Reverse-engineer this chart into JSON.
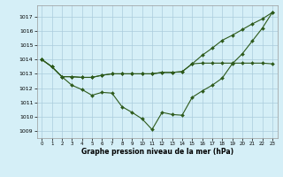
{
  "x": [
    0,
    1,
    2,
    3,
    4,
    5,
    6,
    7,
    8,
    9,
    10,
    11,
    12,
    13,
    14,
    15,
    16,
    17,
    18,
    19,
    20,
    21,
    22,
    23
  ],
  "line_bottom": [
    1014.0,
    1013.5,
    1012.8,
    1012.2,
    1011.9,
    1011.5,
    1011.7,
    1011.65,
    1010.7,
    1010.3,
    1009.85,
    1009.1,
    1010.3,
    1010.15,
    1010.1,
    1011.35,
    1011.8,
    1012.2,
    1012.7,
    1013.7,
    1014.4,
    1015.3,
    1016.2,
    1017.3
  ],
  "line_mid": [
    1014.0,
    1013.5,
    1012.8,
    1012.8,
    1012.75,
    1012.75,
    1012.9,
    1013.0,
    1013.0,
    1013.0,
    1013.0,
    1013.0,
    1013.1,
    1013.1,
    1013.15,
    1013.7,
    1013.75,
    1013.75,
    1013.75,
    1013.75,
    1013.75,
    1013.75,
    1013.75,
    1013.7
  ],
  "line_top": [
    1014.0,
    1013.5,
    1012.8,
    1012.8,
    1012.75,
    1012.75,
    1012.9,
    1013.0,
    1013.0,
    1013.0,
    1013.0,
    1013.0,
    1013.1,
    1013.1,
    1013.15,
    1013.7,
    1014.3,
    1014.8,
    1015.35,
    1015.7,
    1016.1,
    1016.5,
    1016.85,
    1017.3
  ],
  "yticks": [
    1009,
    1010,
    1011,
    1012,
    1013,
    1014,
    1015,
    1016,
    1017
  ],
  "xticks": [
    0,
    1,
    2,
    3,
    4,
    5,
    6,
    7,
    8,
    9,
    10,
    11,
    12,
    13,
    14,
    15,
    16,
    17,
    18,
    19,
    20,
    21,
    22,
    23
  ],
  "xlabel": "Graphe pression niveau de la mer (hPa)",
  "line_color": "#2d5a1b",
  "bg_color": "#d5eff7",
  "grid_color": "#aaccdd"
}
